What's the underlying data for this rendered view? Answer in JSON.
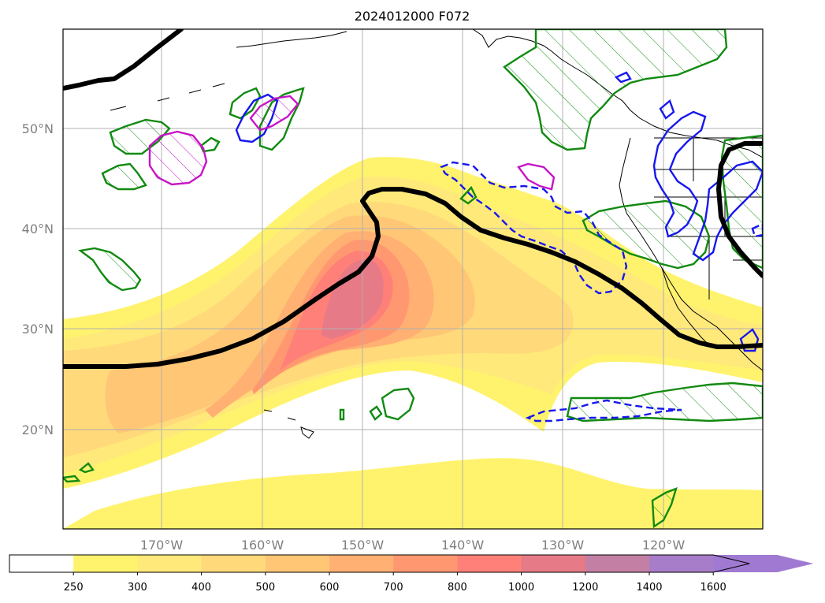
{
  "map": {
    "title": "2024012000 F072",
    "lat_labels": [
      "50°N",
      "40°N",
      "30°N",
      "20°N"
    ],
    "lon_labels": [
      "170°W",
      "160°W",
      "150°W",
      "140°W",
      "130°W",
      "120°W"
    ]
  },
  "colorbar": {
    "levels": [
      "250",
      "300",
      "400",
      "500",
      "600",
      "700",
      "800",
      "1000",
      "1200",
      "1400",
      "1600"
    ],
    "colors": [
      "#ffffff",
      "#fff36e",
      "#ffe97a",
      "#ffd97a",
      "#ffc676",
      "#ffb072",
      "#ff9870",
      "#ff8078",
      "#e67a86",
      "#c47fa4",
      "#a77cc8",
      "#a07ad2"
    ],
    "extend": "max"
  },
  "colors": {
    "jet_line": "#000000",
    "green_contour": "#118a11",
    "blue_contour": "#1717ee",
    "magenta_contour": "#c515c5",
    "coastline": "#000000",
    "grid": "#b0b0b0"
  }
}
